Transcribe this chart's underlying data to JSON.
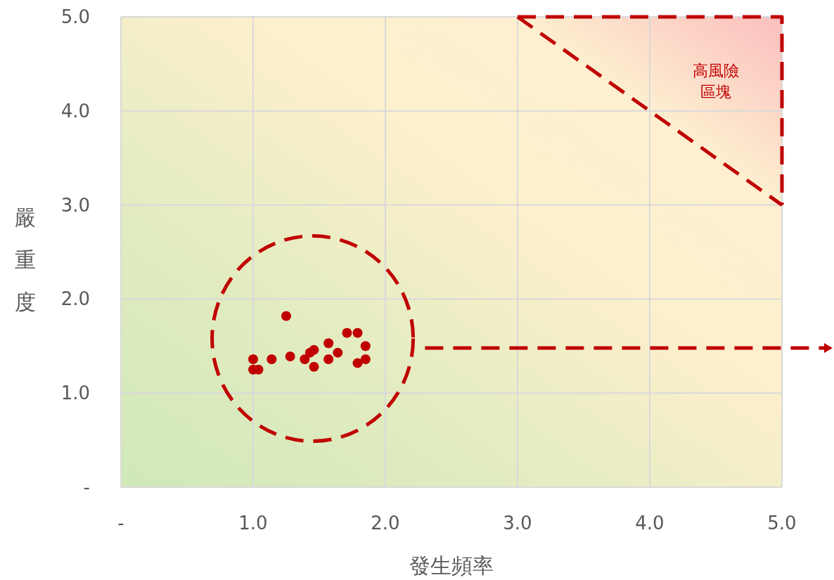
{
  "chart_data": {
    "type": "scatter",
    "xlabel": "發生頻率",
    "ylabel": "嚴重度",
    "annotations": [
      "高風險區塊"
    ],
    "xlim": [
      0,
      5
    ],
    "ylim": [
      0,
      5
    ],
    "xticks": [
      {
        "value": 0,
        "label": "-"
      },
      {
        "value": 1,
        "label": "1.0"
      },
      {
        "value": 2,
        "label": "2.0"
      },
      {
        "value": 3,
        "label": "3.0"
      },
      {
        "value": 4,
        "label": "4.0"
      },
      {
        "value": 5,
        "label": "5.0"
      }
    ],
    "yticks": [
      {
        "value": 0,
        "label": "-"
      },
      {
        "value": 1,
        "label": "1.0"
      },
      {
        "value": 2,
        "label": "2.0"
      },
      {
        "value": 3,
        "label": "3.0"
      },
      {
        "value": 4,
        "label": "4.0"
      },
      {
        "value": 5,
        "label": "5.0"
      }
    ],
    "grid": true,
    "marker": "circle",
    "series": [
      {
        "color": "#c00000",
        "x": [
          1.25,
          1.0,
          1.0,
          1.04,
          1.14,
          1.28,
          1.39,
          1.43,
          1.46,
          1.46,
          1.57,
          1.57,
          1.64,
          1.71,
          1.79,
          1.85,
          1.79,
          1.85
        ],
        "values": [
          1.82,
          1.36,
          1.25,
          1.25,
          1.36,
          1.39,
          1.36,
          1.43,
          1.46,
          1.28,
          1.53,
          1.36,
          1.43,
          1.64,
          1.64,
          1.5,
          1.32,
          1.36
        ]
      },
      {
        "type": "line",
        "color": "#c00000",
        "line_style": "dashed",
        "marker": "none",
        "x": [
          3,
          5
        ],
        "values": [
          5,
          3
        ]
      },
      {
        "type": "line",
        "color": "#c00000",
        "line_style": "dashed",
        "marker": "none",
        "x": [
          3,
          5,
          5
        ],
        "values": [
          5,
          5,
          3
        ]
      }
    ]
  }
}
